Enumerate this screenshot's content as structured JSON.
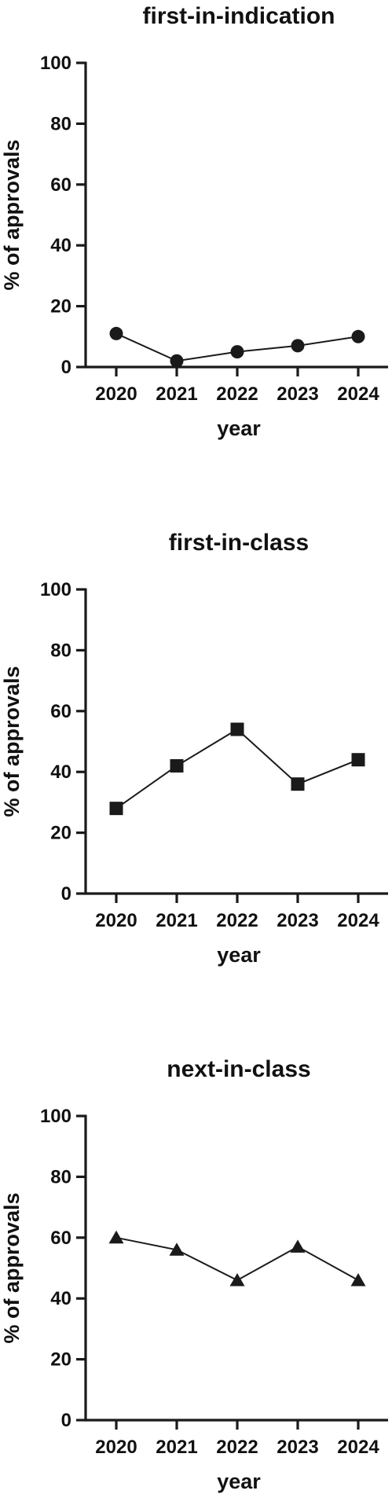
{
  "chart_data": [
    {
      "type": "line",
      "title": "first-in-indication",
      "xlabel": "year",
      "ylabel": "% of approvals",
      "categories": [
        "2020",
        "2021",
        "2022",
        "2023",
        "2024"
      ],
      "y_ticks": [
        "0",
        "20",
        "40",
        "60",
        "80",
        "100"
      ],
      "ylim": [
        0,
        100
      ],
      "marker": "circle",
      "grid": false,
      "series": [
        {
          "values": [
            11,
            2,
            5,
            7,
            10
          ]
        }
      ]
    },
    {
      "type": "line",
      "title": "first-in-class",
      "xlabel": "year",
      "ylabel": "% of approvals",
      "categories": [
        "2020",
        "2021",
        "2022",
        "2023",
        "2024"
      ],
      "y_ticks": [
        "0",
        "20",
        "40",
        "60",
        "80",
        "100"
      ],
      "ylim": [
        0,
        100
      ],
      "marker": "square",
      "grid": false,
      "series": [
        {
          "values": [
            28,
            42,
            54,
            36,
            44
          ]
        }
      ]
    },
    {
      "type": "line",
      "title": "next-in-class",
      "xlabel": "year",
      "ylabel": "% of approvals",
      "categories": [
        "2020",
        "2021",
        "2022",
        "2023",
        "2024"
      ],
      "y_ticks": [
        "0",
        "20",
        "40",
        "60",
        "80",
        "100"
      ],
      "ylim": [
        0,
        100
      ],
      "marker": "triangle",
      "grid": false,
      "series": [
        {
          "values": [
            60,
            56,
            46,
            57,
            46
          ]
        }
      ]
    }
  ]
}
